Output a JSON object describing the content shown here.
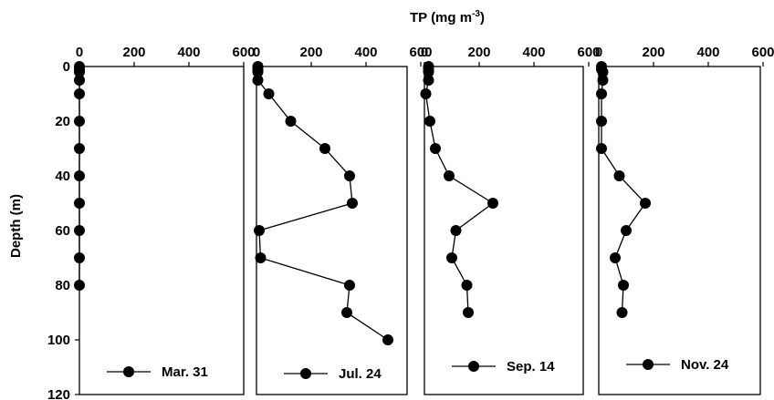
{
  "chart_data": {
    "type": "scatter",
    "title": "",
    "xlabel_main": "TP (mg m",
    "xlabel_sup": "-3",
    "xlabel_close": ")",
    "ylabel": "Depth (m)",
    "x_ticks": [
      "0",
      "200",
      "400",
      "600"
    ],
    "y_ticks": [
      "0",
      "20",
      "40",
      "60",
      "80",
      "100",
      "120"
    ],
    "xlim": [
      0,
      600
    ],
    "ylim": [
      0,
      120
    ],
    "y_inverted": true,
    "grid": false,
    "legend_position": "bottom-center",
    "marker": "filled-circle",
    "line_color": "#000000",
    "series": [
      {
        "name": "Mar. 31",
        "points": [
          {
            "x": 0,
            "y": 0
          },
          {
            "x": 0,
            "y": 1
          },
          {
            "x": 0,
            "y": 2
          },
          {
            "x": 0,
            "y": 5
          },
          {
            "x": 0,
            "y": 10
          },
          {
            "x": 0,
            "y": 20
          },
          {
            "x": 0,
            "y": 30
          },
          {
            "x": 0,
            "y": 40
          },
          {
            "x": 0,
            "y": 50
          },
          {
            "x": 0,
            "y": 60
          },
          {
            "x": 0,
            "y": 70
          },
          {
            "x": 0,
            "y": 80
          }
        ]
      },
      {
        "name": "Jul. 24",
        "points": [
          {
            "x": 5,
            "y": 0
          },
          {
            "x": 5,
            "y": 1
          },
          {
            "x": 5,
            "y": 2
          },
          {
            "x": 5,
            "y": 5
          },
          {
            "x": 45,
            "y": 10
          },
          {
            "x": 125,
            "y": 20
          },
          {
            "x": 250,
            "y": 30
          },
          {
            "x": 340,
            "y": 40
          },
          {
            "x": 350,
            "y": 50
          },
          {
            "x": 10,
            "y": 60
          },
          {
            "x": 15,
            "y": 70
          },
          {
            "x": 340,
            "y": 80
          },
          {
            "x": 330,
            "y": 90
          },
          {
            "x": 480,
            "y": 100
          }
        ]
      },
      {
        "name": "Sep. 14",
        "points": [
          {
            "x": 15,
            "y": 0
          },
          {
            "x": 15,
            "y": 1
          },
          {
            "x": 15,
            "y": 2
          },
          {
            "x": 15,
            "y": 5
          },
          {
            "x": 5,
            "y": 10
          },
          {
            "x": 20,
            "y": 20
          },
          {
            "x": 40,
            "y": 30
          },
          {
            "x": 90,
            "y": 40
          },
          {
            "x": 250,
            "y": 50
          },
          {
            "x": 115,
            "y": 60
          },
          {
            "x": 100,
            "y": 70
          },
          {
            "x": 155,
            "y": 80
          },
          {
            "x": 160,
            "y": 90
          }
        ]
      },
      {
        "name": "Nov. 24",
        "points": [
          {
            "x": 10,
            "y": 0
          },
          {
            "x": 10,
            "y": 1
          },
          {
            "x": 15,
            "y": 2
          },
          {
            "x": 15,
            "y": 5
          },
          {
            "x": 10,
            "y": 10
          },
          {
            "x": 10,
            "y": 20
          },
          {
            "x": 10,
            "y": 30
          },
          {
            "x": 75,
            "y": 40
          },
          {
            "x": 170,
            "y": 50
          },
          {
            "x": 100,
            "y": 60
          },
          {
            "x": 60,
            "y": 70
          },
          {
            "x": 90,
            "y": 80
          },
          {
            "x": 85,
            "y": 90
          }
        ]
      }
    ]
  }
}
